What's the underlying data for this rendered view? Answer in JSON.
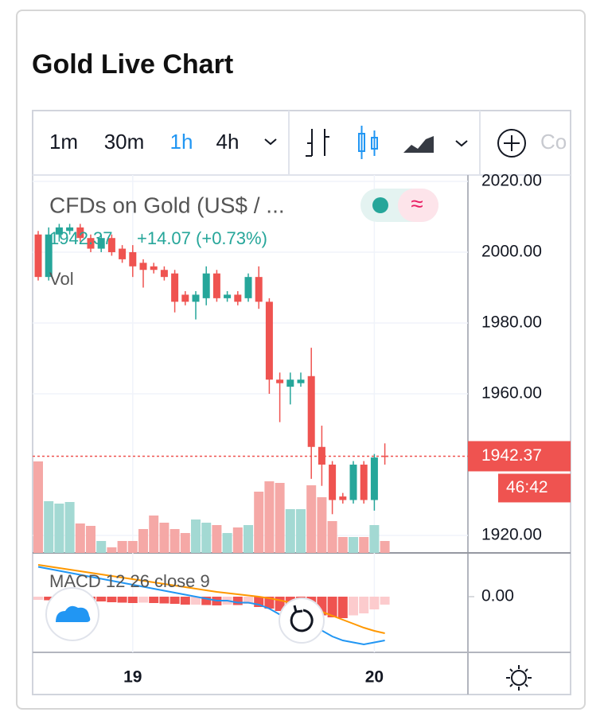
{
  "title": "Gold Live Chart",
  "toolbar": {
    "intervals": [
      "1m",
      "30m",
      "1h",
      "4h"
    ],
    "active_interval": 2,
    "compare": "Co"
  },
  "chart_data": {
    "type": "candlestick",
    "legend": {
      "symbol": "CFDs on Gold (US$ / ...",
      "last": "1942.37",
      "change": "+14.07 (+0.73%)",
      "volume": "Vol"
    },
    "categories": [
      null,
      null,
      null,
      null,
      null,
      null,
      null,
      null,
      null,
      "19",
      null,
      null,
      null,
      null,
      null,
      null,
      null,
      null,
      null,
      null,
      null,
      null,
      null,
      null,
      null,
      null,
      null,
      null,
      null,
      null,
      null,
      null,
      "20",
      null
    ],
    "open": [
      2005,
      1993,
      2005,
      2006,
      2007,
      2004,
      2001,
      2004,
      2001,
      2000,
      1997,
      1996,
      1995,
      1994,
      1988,
      1986,
      1987,
      1994,
      1987,
      1988,
      1987,
      1993,
      1986,
      1964,
      1962,
      1963,
      1965,
      1945,
      1940,
      1931,
      1930,
      1940,
      1930,
      1942.5
    ],
    "high": [
      2006,
      2007,
      2008,
      2008,
      2008,
      2005,
      2005,
      2005,
      2002,
      2002,
      1998,
      1997,
      1996,
      1995,
      1989,
      1989,
      1996,
      1995,
      1989,
      1989,
      1994,
      1996,
      1987,
      1966,
      1966,
      1966,
      1973,
      1951,
      1941,
      1932,
      1941,
      1941,
      1943,
      1946
    ],
    "low": [
      1992,
      1992,
      2003,
      2005,
      2003,
      2000,
      2000,
      1999,
      1997,
      1993,
      1990,
      1994,
      1992,
      1983,
      1985,
      1981,
      1985,
      1986,
      1986,
      1985,
      1986,
      1984,
      1960,
      1952,
      1957,
      1962,
      1936,
      1934,
      1926,
      1929,
      1929,
      1929,
      1927,
      1940
    ],
    "close": [
      1993,
      2005,
      2007,
      2007,
      2004,
      2001,
      2004,
      2000,
      1998,
      1996,
      1995,
      1995,
      1993,
      1986,
      1986,
      1988,
      1994,
      1987,
      1988,
      1986,
      1993,
      1986,
      1964,
      1963,
      1964,
      1964,
      1945,
      1940,
      1930,
      1930,
      1940,
      1930,
      1942,
      1942.37
    ],
    "up_color": "#26a69a",
    "down_color": "#ef5350",
    "volume": [
      115,
      65,
      62,
      64,
      37,
      34,
      15,
      7,
      15,
      15,
      30,
      47,
      38,
      30,
      25,
      42,
      38,
      35,
      25,
      32,
      35,
      77,
      90,
      88,
      55,
      55,
      85,
      70,
      40,
      20,
      20,
      20,
      35,
      15
    ],
    "volume_up_color": "#a3d9d3",
    "volume_down_color": "#f5a8a6",
    "ylim": [
      1915.06,
      2021.8
    ],
    "yticks": [
      {
        "value": 1920,
        "label": "1920.00"
      },
      {
        "value": 1960,
        "label": "1960.00"
      },
      {
        "value": 1980,
        "label": "1980.00"
      },
      {
        "value": 2000,
        "label": "2000.00"
      },
      {
        "value": 2020,
        "label": "2020.00"
      }
    ],
    "grid": true,
    "last_price": 1942.37,
    "countdown": "46:42",
    "macd": {
      "label": "MACD 12 26 close 9",
      "ylim": [
        -14,
        11
      ],
      "yticks": [
        {
          "value": 0,
          "label": "0.00"
        }
      ],
      "macd_color": "#2196f3",
      "signal_color": "#ff9800",
      "hist_dark": "#ef5350",
      "hist_light": "#fccbcd",
      "macd": [
        7.5,
        7,
        6.5,
        6,
        5.5,
        5,
        4.5,
        4,
        3.5,
        3,
        2.5,
        2,
        1.5,
        1,
        0.5,
        0,
        -0.5,
        -1,
        -1,
        -1.5,
        -1.5,
        -2,
        -3,
        -4.5,
        -5.5,
        -6.5,
        -7.5,
        -8.5,
        -10,
        -11,
        -11.5,
        -12,
        -11.5,
        -11
      ],
      "signal": [
        8,
        7.6,
        7.2,
        6.8,
        6.4,
        6,
        5.6,
        5.2,
        4.8,
        4.4,
        4,
        3.6,
        3.2,
        2.8,
        2.4,
        2,
        1.6,
        1.2,
        0.9,
        0.6,
        0.3,
        0,
        -0.4,
        -0.9,
        -1.5,
        -2.2,
        -3,
        -3.8,
        -4.8,
        -5.8,
        -6.8,
        -7.8,
        -8.6,
        -9.2
      ],
      "histogram": [
        -0.8,
        -0.9,
        -0.8,
        -0.9,
        -0.8,
        -0.9,
        -1.2,
        -1.4,
        -1.5,
        -1.6,
        -1.5,
        -1.6,
        -1.7,
        -1.8,
        -2,
        -2,
        -2.1,
        -2.2,
        -2,
        -2.1,
        -1.8,
        -2.6,
        -3,
        -3.6,
        -4,
        -4.3,
        -4.5,
        -4.7,
        -5.2,
        -5.4,
        -4.7,
        -4.2,
        -3.2,
        -2
      ]
    }
  }
}
